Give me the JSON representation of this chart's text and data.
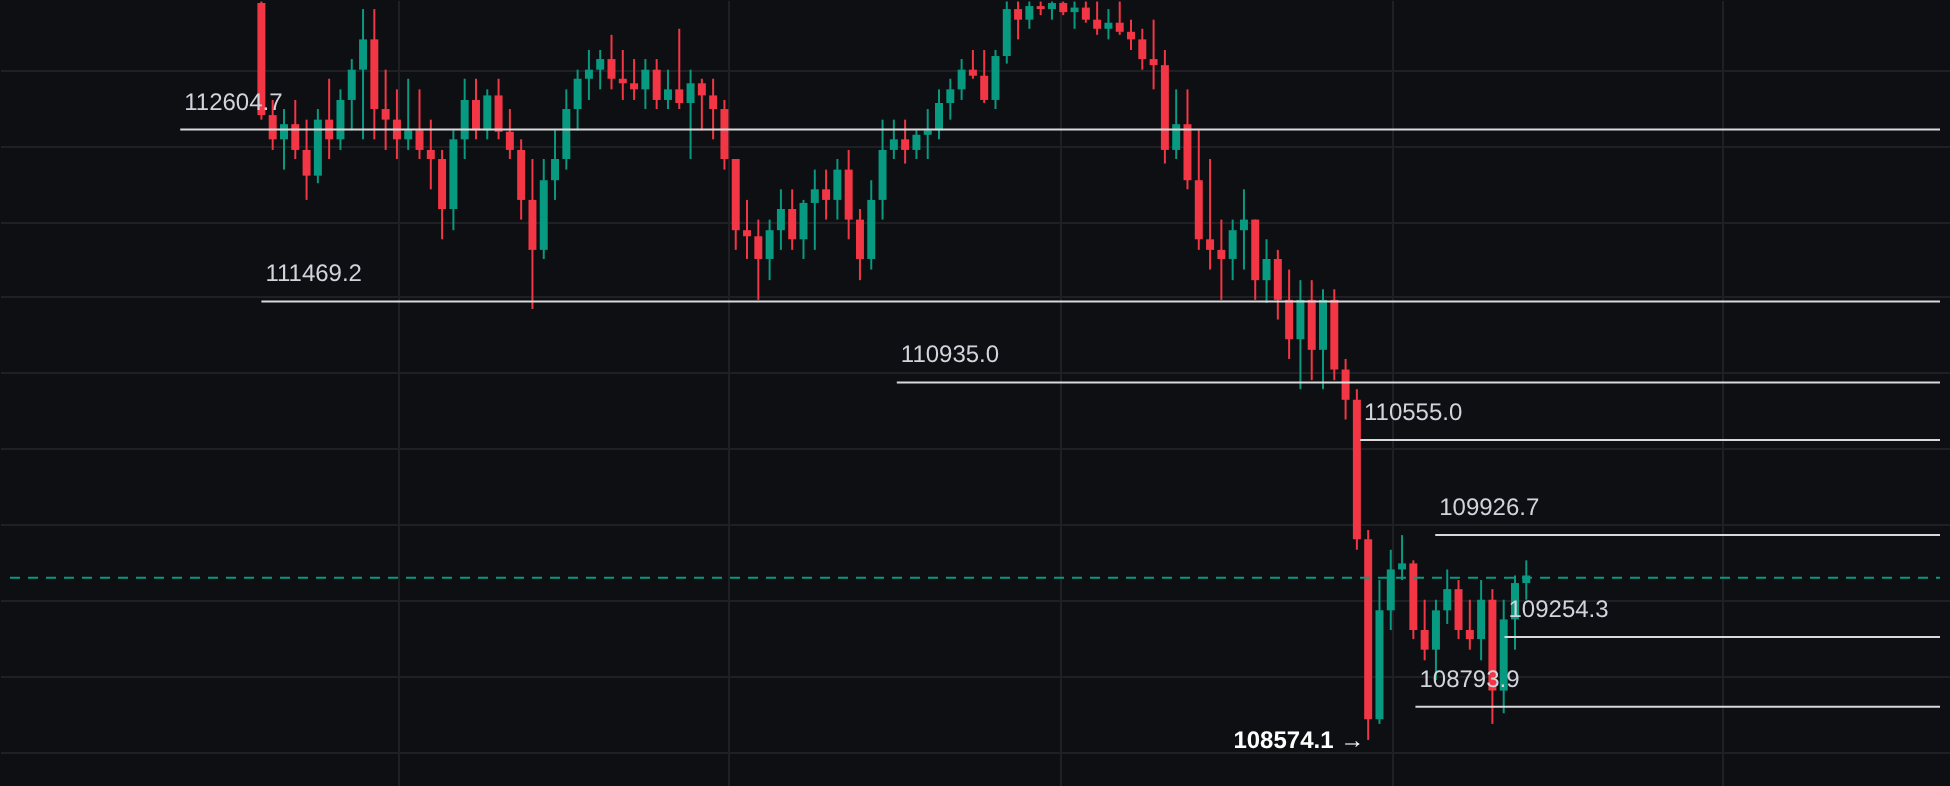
{
  "chart_data": {
    "type": "candlestick",
    "categories": [
      null,
      null,
      null,
      null,
      null,
      null,
      null,
      null,
      null,
      null,
      null,
      null,
      null,
      null,
      null,
      null,
      null,
      null,
      null,
      null,
      null,
      null,
      null,
      null,
      null,
      null,
      null,
      null,
      null,
      null,
      null,
      null,
      null,
      null,
      null,
      null,
      null,
      null,
      null,
      null,
      null,
      null,
      null,
      null,
      null,
      null,
      null,
      null,
      null,
      null,
      null,
      null,
      null,
      null,
      null,
      null,
      null,
      null,
      null,
      null,
      null,
      null,
      null,
      null,
      null,
      null,
      null,
      null,
      null,
      null,
      null,
      null,
      null,
      null,
      null,
      null,
      null,
      null,
      null,
      null,
      null,
      null,
      null,
      null,
      null,
      null,
      null,
      null,
      null,
      null,
      null,
      null,
      null,
      null,
      null,
      null,
      null,
      null,
      null,
      null,
      null,
      null,
      null,
      null,
      null,
      null,
      null,
      null,
      null,
      null,
      null,
      null,
      null
    ],
    "ohlc": [
      [
        113440,
        113450,
        112670,
        112700
      ],
      [
        112700,
        112800,
        112470,
        112540
      ],
      [
        112540,
        112740,
        112340,
        112640
      ],
      [
        112640,
        112800,
        112410,
        112470
      ],
      [
        112470,
        112670,
        112140,
        112300
      ],
      [
        112300,
        112740,
        112250,
        112670
      ],
      [
        112670,
        112940,
        112410,
        112540
      ],
      [
        112540,
        112870,
        112470,
        112800
      ],
      [
        112800,
        113070,
        112600,
        113000
      ],
      [
        113000,
        113400,
        112540,
        113200
      ],
      [
        113200,
        113400,
        112540,
        112740
      ],
      [
        112740,
        113000,
        112470,
        112670
      ],
      [
        112670,
        112870,
        112410,
        112540
      ],
      [
        112540,
        112940,
        112470,
        112600
      ],
      [
        112600,
        112870,
        112410,
        112470
      ],
      [
        112470,
        112670,
        112210,
        112410
      ],
      [
        112410,
        112470,
        111880,
        112080
      ],
      [
        112080,
        112600,
        111940,
        112540
      ],
      [
        112540,
        112940,
        112410,
        112800
      ],
      [
        112800,
        112940,
        112540,
        112600
      ],
      [
        112600,
        112870,
        112540,
        112830
      ],
      [
        112830,
        112940,
        112540,
        112590
      ],
      [
        112590,
        112740,
        112410,
        112470
      ],
      [
        112470,
        112540,
        112010,
        112140
      ],
      [
        112140,
        112410,
        111420,
        111810
      ],
      [
        111810,
        112410,
        111750,
        112270
      ],
      [
        112270,
        112600,
        112140,
        112410
      ],
      [
        112410,
        112870,
        112340,
        112740
      ],
      [
        112740,
        113000,
        112600,
        112940
      ],
      [
        112940,
        113130,
        112800,
        113000
      ],
      [
        113000,
        113130,
        112870,
        113070
      ],
      [
        113070,
        113230,
        112870,
        112940
      ],
      [
        112940,
        113130,
        112800,
        112910
      ],
      [
        112910,
        113070,
        112800,
        112870
      ],
      [
        112870,
        113070,
        112740,
        113000
      ],
      [
        113000,
        113070,
        112740,
        112800
      ],
      [
        112800,
        113000,
        112740,
        112870
      ],
      [
        112870,
        113270,
        112740,
        112780
      ],
      [
        112780,
        113000,
        112410,
        112910
      ],
      [
        112910,
        112940,
        112600,
        112830
      ],
      [
        112830,
        112940,
        112540,
        112740
      ],
      [
        112740,
        112800,
        112340,
        112410
      ],
      [
        112410,
        112410,
        111810,
        111940
      ],
      [
        111940,
        112140,
        111750,
        111900
      ],
      [
        111900,
        112010,
        111480,
        111750
      ],
      [
        111750,
        112010,
        111610,
        111940
      ],
      [
        111940,
        112210,
        111810,
        112080
      ],
      [
        112080,
        112210,
        111810,
        111880
      ],
      [
        111880,
        112140,
        111750,
        112120
      ],
      [
        112120,
        112340,
        111810,
        112210
      ],
      [
        112210,
        112340,
        112010,
        112140
      ],
      [
        112140,
        112410,
        112010,
        112340
      ],
      [
        112340,
        112470,
        111880,
        112010
      ],
      [
        112010,
        112080,
        111610,
        111750
      ],
      [
        111750,
        112270,
        111680,
        112140
      ],
      [
        112140,
        112670,
        112010,
        112470
      ],
      [
        112470,
        112670,
        112410,
        112540
      ],
      [
        112540,
        112670,
        112380,
        112470
      ],
      [
        112470,
        112600,
        112410,
        112570
      ],
      [
        112570,
        112740,
        112410,
        112600
      ],
      [
        112600,
        112870,
        112540,
        112780
      ],
      [
        112780,
        112940,
        112670,
        112870
      ],
      [
        112870,
        113070,
        112800,
        113000
      ],
      [
        113000,
        113130,
        112940,
        112960
      ],
      [
        112960,
        113130,
        112780,
        112800
      ],
      [
        112800,
        113130,
        112740,
        113090
      ],
      [
        113090,
        113450,
        113040,
        113400
      ],
      [
        113400,
        113450,
        113200,
        113330
      ],
      [
        113330,
        113450,
        113270,
        113420
      ],
      [
        113420,
        113450,
        113360,
        113400
      ],
      [
        113400,
        113450,
        113330,
        113440
      ],
      [
        113440,
        113450,
        113360,
        113380
      ],
      [
        113380,
        113450,
        113270,
        113410
      ],
      [
        113410,
        113450,
        113310,
        113330
      ],
      [
        113330,
        113450,
        113230,
        113270
      ],
      [
        113270,
        113400,
        113200,
        113310
      ],
      [
        113310,
        113450,
        113230,
        113250
      ],
      [
        113250,
        113330,
        113130,
        113200
      ],
      [
        113200,
        113270,
        113000,
        113070
      ],
      [
        113070,
        113330,
        112870,
        113030
      ],
      [
        113030,
        113130,
        112380,
        112470
      ],
      [
        112470,
        112870,
        112410,
        112640
      ],
      [
        112640,
        112870,
        112210,
        112270
      ],
      [
        112270,
        112600,
        111810,
        111880
      ],
      [
        111880,
        112410,
        111680,
        111810
      ],
      [
        111810,
        112010,
        111480,
        111750
      ],
      [
        111750,
        112010,
        111610,
        111940
      ],
      [
        111940,
        112210,
        111680,
        112010
      ],
      [
        112010,
        112010,
        111480,
        111610
      ],
      [
        111610,
        111880,
        111460,
        111750
      ],
      [
        111750,
        111810,
        111350,
        111480
      ],
      [
        111480,
        111680,
        111090,
        111220
      ],
      [
        111220,
        111610,
        110890,
        111480
      ],
      [
        111480,
        111610,
        110950,
        111150
      ],
      [
        111150,
        111550,
        110890,
        111480
      ],
      [
        111480,
        111550,
        110950,
        111020
      ],
      [
        111020,
        111090,
        110690,
        110820
      ],
      [
        110820,
        110890,
        109830,
        109900
      ],
      [
        109900,
        109960,
        108574.1,
        108710
      ],
      [
        108710,
        109630,
        108680,
        109430
      ],
      [
        109430,
        109830,
        109300,
        109700
      ],
      [
        109700,
        109926.7,
        109630,
        109740
      ],
      [
        109740,
        109760,
        109240,
        109300
      ],
      [
        109300,
        109500,
        109100,
        109170
      ],
      [
        109170,
        109500,
        108970,
        109430
      ],
      [
        109430,
        109700,
        109340,
        109570
      ],
      [
        109570,
        109630,
        109240,
        109300
      ],
      [
        109300,
        109500,
        109170,
        109240
      ],
      [
        109240,
        109630,
        109100,
        109500
      ],
      [
        109500,
        109570,
        108680,
        108900
      ],
      [
        108900,
        109500,
        108750,
        109370
      ],
      [
        109370,
        109660,
        109170,
        109610
      ],
      [
        109610,
        109760,
        109500,
        109660
      ]
    ],
    "colors": [
      "#f23645",
      "#f23645",
      "#089981",
      "#f23645",
      "#f23645",
      "#089981",
      "#f23645",
      "#089981",
      "#089981",
      "#089981",
      "#f23645",
      "#f23645",
      "#f23645",
      "#089981",
      "#f23645",
      "#f23645",
      "#f23645",
      "#089981",
      "#089981",
      "#f23645",
      "#089981",
      "#f23645",
      "#f23645",
      "#f23645",
      "#f23645",
      "#089981",
      "#089981",
      "#089981",
      "#089981",
      "#089981",
      "#089981",
      "#f23645",
      "#f23645",
      "#f23645",
      "#089981",
      "#f23645",
      "#089981",
      "#f23645",
      "#089981",
      "#f23645",
      "#f23645",
      "#f23645",
      "#f23645",
      "#f23645",
      "#f23645",
      "#089981",
      "#089981",
      "#f23645",
      "#089981",
      "#089981",
      "#f23645",
      "#089981",
      "#f23645",
      "#f23645",
      "#089981",
      "#089981",
      "#089981",
      "#f23645",
      "#089981",
      "#089981",
      "#089981",
      "#089981",
      "#089981",
      "#f23645",
      "#f23645",
      "#089981",
      "#089981",
      "#f23645",
      "#089981",
      "#f23645",
      "#089981",
      "#f23645",
      "#089981",
      "#f23645",
      "#f23645",
      "#089981",
      "#f23645",
      "#f23645",
      "#f23645",
      "#f23645",
      "#f23645",
      "#089981",
      "#f23645",
      "#f23645",
      "#f23645",
      "#f23645",
      "#089981",
      "#089981",
      "#f23645",
      "#089981",
      "#f23645",
      "#f23645",
      "#089981",
      "#f23645",
      "#089981",
      "#f23645",
      "#f23645",
      "#f23645",
      "#f23645",
      "#089981",
      "#089981",
      "#089981",
      "#f23645",
      "#f23645",
      "#089981",
      "#089981",
      "#f23645",
      "#f23645",
      "#089981",
      "#f23645",
      "#089981",
      "#089981",
      "#089981"
    ],
    "ylim": [
      108270,
      113460
    ],
    "yticks": [
      {
        "value": 113000,
        "label": null
      },
      {
        "value": 112500,
        "label": null
      },
      {
        "value": 112000,
        "label": null
      },
      {
        "value": 111500,
        "label": null
      },
      {
        "value": 111000,
        "label": null
      },
      {
        "value": 110500,
        "label": null
      },
      {
        "value": 110000,
        "label": null
      },
      {
        "value": 109500,
        "label": null
      },
      {
        "value": 109000,
        "label": null
      },
      {
        "value": 108500,
        "label": null
      }
    ],
    "grid": true,
    "ref_lines": [
      {
        "axis": "y",
        "value": 112604.7,
        "label": "112604.7",
        "color": "#d9d9d9",
        "line_style": "solid"
      },
      {
        "axis": "y",
        "value": 111469.2,
        "label": "111469.2",
        "color": "#d9d9d9",
        "line_style": "solid"
      },
      {
        "axis": "y",
        "value": 110935.0,
        "label": "110935.0",
        "color": "#d9d9d9",
        "line_style": "solid"
      },
      {
        "axis": "y",
        "value": 110555.0,
        "label": "110555.0",
        "color": "#d9d9d9",
        "line_style": "solid"
      },
      {
        "axis": "y",
        "value": 109926.7,
        "label": "109926.7",
        "color": "#d9d9d9",
        "line_style": "solid"
      },
      {
        "axis": "y",
        "value": 109254.3,
        "label": "109254.3",
        "color": "#d9d9d9",
        "line_style": "solid"
      },
      {
        "axis": "y",
        "value": 108793.9,
        "label": "108793.9",
        "color": "#d9d9d9",
        "line_style": "solid"
      },
      {
        "axis": "y",
        "value": 109645,
        "color": "#089981",
        "line_style": "dashed"
      }
    ],
    "annotations": [
      "108574.1 →"
    ]
  }
}
